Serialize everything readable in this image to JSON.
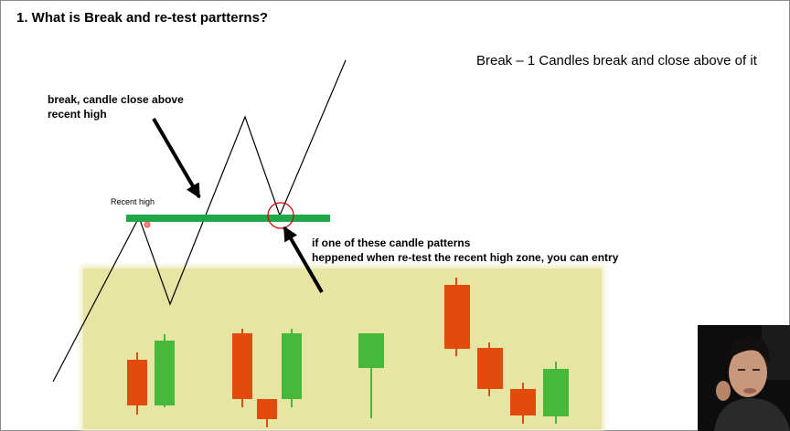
{
  "slide": {
    "title": "1. What is Break and re-test partterns?",
    "subtitle": "Break – 1 Candles break and close above of it",
    "break_note": [
      "break, candle close above",
      "recent high"
    ],
    "recent_high_label": "Recent high",
    "retest_note": [
      "if one of these candle patterns",
      "heppened when re-test the recent high zone, you can entry"
    ]
  },
  "colors": {
    "level_line": "#1fa84a",
    "zone": "#e6e5a4",
    "bearish": "#e24a0e",
    "bullish": "#46b83a",
    "marker": "#cc0000"
  },
  "icons": [
    "arrow-icon",
    "circle-marker-icon",
    "cursor-dot-icon",
    "presenter-webcam"
  ]
}
